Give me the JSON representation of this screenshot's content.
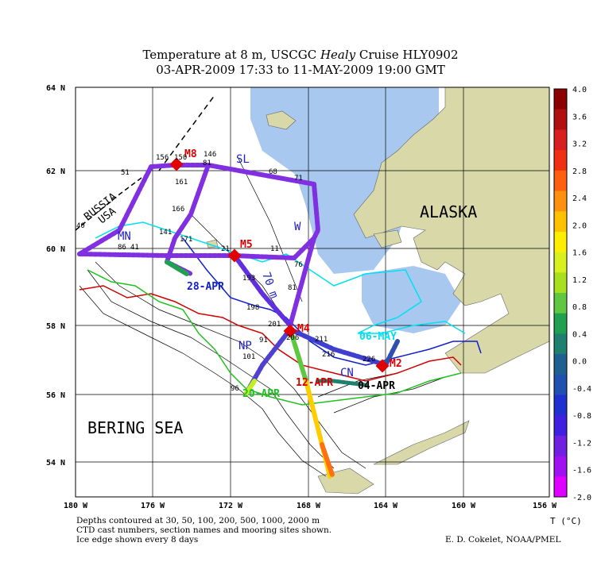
{
  "title": {
    "line1_pre": "Temperature at 8 m, USCGC ",
    "line1_italic": "Healy",
    "line1_post": " Cruise HLY0902",
    "line2": "03-APR-2009 17:33 to 11-MAY-2009 19:00 GMT"
  },
  "axes": {
    "lat_labels": [
      "64 N",
      "62 N",
      "60 N",
      "58 N",
      "56 N",
      "54 N"
    ],
    "lon_labels": [
      "180 W",
      "176 W",
      "172 W",
      "168 W",
      "164 W",
      "160 W",
      "156 W"
    ]
  },
  "regions": {
    "alaska": "ALASKA",
    "bering_sea": "BERING SEA",
    "russia": "RUSSIA",
    "usa": "USA"
  },
  "sections": [
    "SL",
    "MN",
    "W",
    "70 m",
    "NP",
    "CN"
  ],
  "moorings": [
    "M8",
    "M5",
    "M4",
    "M2"
  ],
  "ice_dates": [
    "28-APR",
    "06-MAY",
    "12-APR",
    "04-APR",
    "20-APR"
  ],
  "cast_numbers": [
    "156",
    "150",
    "146",
    "51",
    "161",
    "81",
    "68",
    "71",
    "166",
    "40",
    "141",
    "86",
    "41",
    "171",
    "21",
    "11",
    "76",
    "193",
    "81",
    "198",
    "201",
    "206",
    "91",
    "101",
    "211",
    "216",
    "226",
    "96"
  ],
  "colorbar": {
    "unit": "T (°C)",
    "ticks": [
      "4.0",
      "3.6",
      "3.2",
      "2.8",
      "2.4",
      "2.0",
      "1.6",
      "1.2",
      "0.8",
      "0.4",
      "0.0",
      "-0.4",
      "-0.8",
      "-1.2",
      "-1.6",
      "-2.0"
    ],
    "colors": [
      "#8b0000",
      "#b01010",
      "#d82020",
      "#f03010",
      "#ff6010",
      "#ff9010",
      "#ffc000",
      "#ffee00",
      "#d8f020",
      "#a8e020",
      "#60c840",
      "#20a050",
      "#208070",
      "#206090",
      "#2050b0",
      "#2030d0",
      "#4020e0",
      "#7020e0",
      "#a010f0",
      "#e000ff"
    ]
  },
  "footer": {
    "line1": "Depths contoured at 30, 50, 100, 200, 500, 1000, 2000 m",
    "line2": "CTD cast numbers, section names and mooring sites shown.",
    "line3": "Ice edge shown every 8 days",
    "credit": "E. D. Cokelet, NOAA/PMEL"
  },
  "palette": {
    "land": "#d8d8a8",
    "ice": "#a8c8f0",
    "track_cold": "#8030e0"
  }
}
